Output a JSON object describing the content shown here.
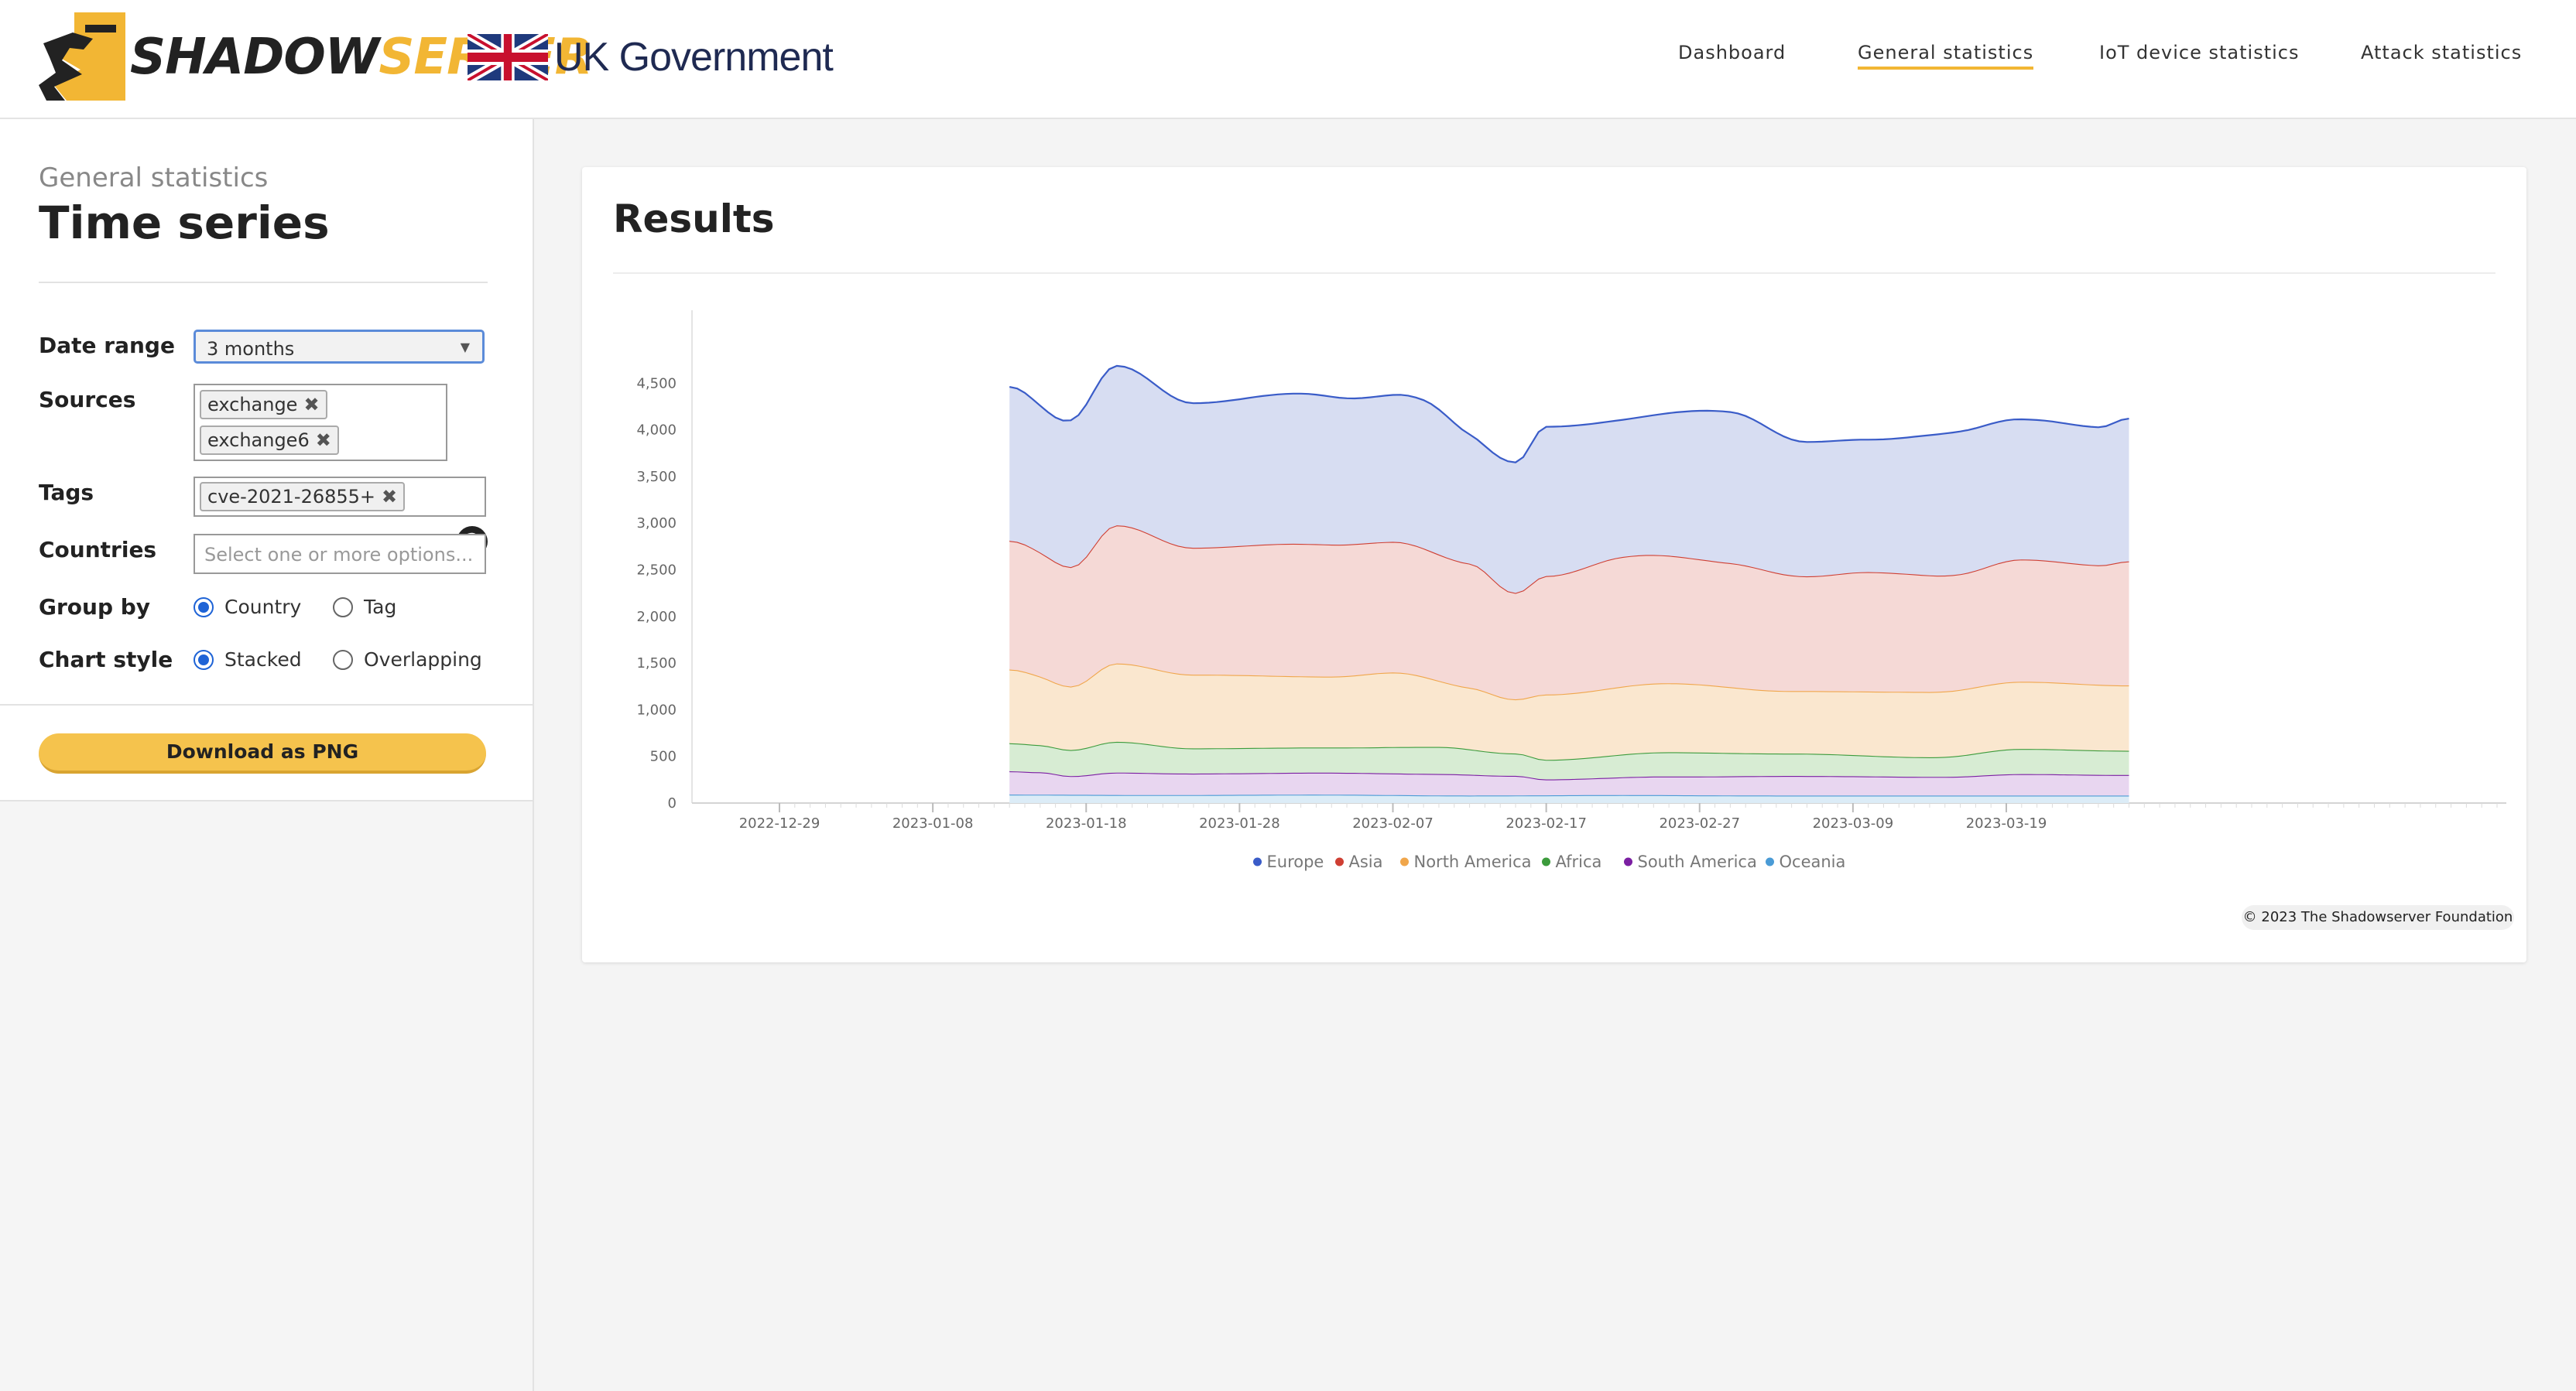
{
  "header": {
    "brand_part1": "SHADOW",
    "brand_part2": "SERVER",
    "partner": "UK Government",
    "nav": [
      {
        "label": "Dashboard",
        "active": false
      },
      {
        "label": "General statistics",
        "active": true
      },
      {
        "label": "IoT device statistics",
        "active": false
      },
      {
        "label": "Attack statistics",
        "active": false
      }
    ]
  },
  "sidebar": {
    "breadcrumb": "General statistics",
    "title": "Time series",
    "date_range": {
      "label": "Date range",
      "value": "3 months"
    },
    "sources": {
      "label": "Sources",
      "tags": [
        "exchange",
        "exchange6"
      ],
      "help": "?"
    },
    "tags": {
      "label": "Tags",
      "tags": [
        "cve-2021-26855+"
      ]
    },
    "countries": {
      "label": "Countries",
      "placeholder": "Select one or more options..."
    },
    "group_by": {
      "label": "Group by",
      "options": [
        "Country",
        "Tag"
      ],
      "selected": "Country"
    },
    "chart_style": {
      "label": "Chart style",
      "options": [
        "Stacked",
        "Overlapping"
      ],
      "selected": "Stacked"
    },
    "download_label": "Download as PNG"
  },
  "results": {
    "title": "Results",
    "credit": "© 2023 The Shadowserver Foundation"
  },
  "chart_data": {
    "type": "area",
    "stacked": true,
    "x_start": "2023-01-13",
    "x_end": "2023-03-27",
    "ylim": [
      0,
      5000
    ],
    "y_ticks": [
      0,
      500,
      1000,
      1500,
      2000,
      2500,
      3000,
      3500,
      4000,
      4500
    ],
    "x_ticks": [
      "2022-12-29",
      "2023-01-08",
      "2023-01-18",
      "2023-01-28",
      "2023-02-07",
      "2023-02-17",
      "2023-02-27",
      "2023-03-09",
      "2023-03-19"
    ],
    "legend_position": "bottom-center",
    "grid": false,
    "series": [
      {
        "name": "Oceania",
        "color": "#4a9bd6",
        "fill": "#dcecf7",
        "x": [
          "2023-01-13",
          "2023-01-23",
          "2023-02-02",
          "2023-02-12",
          "2023-02-22",
          "2023-03-04",
          "2023-03-14",
          "2023-03-27"
        ],
        "values": [
          90,
          85,
          90,
          80,
          85,
          80,
          80,
          80
        ]
      },
      {
        "name": "South America",
        "color": "#7b1fa2",
        "fill": "#e8d6f0",
        "x": [
          "2023-01-13",
          "2023-01-15",
          "2023-01-17",
          "2023-01-20",
          "2023-01-25",
          "2023-02-03",
          "2023-02-10",
          "2023-02-15",
          "2023-02-17",
          "2023-02-25",
          "2023-03-05",
          "2023-03-15",
          "2023-03-20",
          "2023-03-27"
        ],
        "values": [
          250,
          240,
          200,
          240,
          230,
          235,
          230,
          210,
          170,
          200,
          210,
          200,
          230,
          220
        ]
      },
      {
        "name": "Africa",
        "color": "#3c9b3c",
        "fill": "#d7ecd3",
        "x": [
          "2023-01-13",
          "2023-01-17",
          "2023-01-20",
          "2023-01-25",
          "2023-02-03",
          "2023-02-10",
          "2023-02-15",
          "2023-02-17",
          "2023-02-25",
          "2023-03-05",
          "2023-03-14",
          "2023-03-20",
          "2023-03-27"
        ],
        "values": [
          300,
          280,
          330,
          270,
          270,
          290,
          240,
          210,
          260,
          240,
          210,
          270,
          260
        ]
      },
      {
        "name": "North America",
        "color": "#f0a64b",
        "fill": "#fae7cf",
        "x": [
          "2023-01-13",
          "2023-01-17",
          "2023-01-20",
          "2023-01-25",
          "2023-02-03",
          "2023-02-07",
          "2023-02-12",
          "2023-02-15",
          "2023-02-17",
          "2023-02-25",
          "2023-03-05",
          "2023-03-14",
          "2023-03-20",
          "2023-03-27"
        ],
        "values": [
          790,
          680,
          840,
          790,
          760,
          800,
          660,
          580,
          700,
          740,
          670,
          700,
          720,
          700
        ]
      },
      {
        "name": "Asia",
        "color": "#cf3f33",
        "fill": "#f5d9d6",
        "x": [
          "2023-01-13",
          "2023-01-17",
          "2023-01-20",
          "2023-01-25",
          "2023-02-01",
          "2023-02-07",
          "2023-02-12",
          "2023-02-15",
          "2023-02-17",
          "2023-02-22",
          "2023-03-01",
          "2023-03-06",
          "2023-03-10",
          "2023-03-16",
          "2023-03-20",
          "2023-03-25",
          "2023-03-27"
        ],
        "values": [
          1380,
          1280,
          1480,
          1360,
          1420,
          1400,
          1330,
          1140,
          1270,
          1390,
          1330,
          1230,
          1280,
          1240,
          1310,
          1280,
          1330
        ]
      },
      {
        "name": "Europe",
        "color": "#3a5cc8",
        "fill": "#d7ddf2",
        "x": [
          "2023-01-13",
          "2023-01-16",
          "2023-01-20",
          "2023-01-25",
          "2023-02-01",
          "2023-02-05",
          "2023-02-09",
          "2023-02-13",
          "2023-02-15",
          "2023-02-17",
          "2023-02-22",
          "2023-03-01",
          "2023-03-06",
          "2023-03-10",
          "2023-03-16",
          "2023-03-21",
          "2023-03-25",
          "2023-03-27"
        ],
        "values": [
          1650,
          1550,
          1710,
          1550,
          1610,
          1560,
          1590,
          1350,
          1400,
          1600,
          1470,
          1620,
          1440,
          1420,
          1530,
          1500,
          1480,
          1530
        ]
      }
    ],
    "legend": [
      "Europe",
      "Asia",
      "North America",
      "Africa",
      "South America",
      "Oceania"
    ]
  }
}
